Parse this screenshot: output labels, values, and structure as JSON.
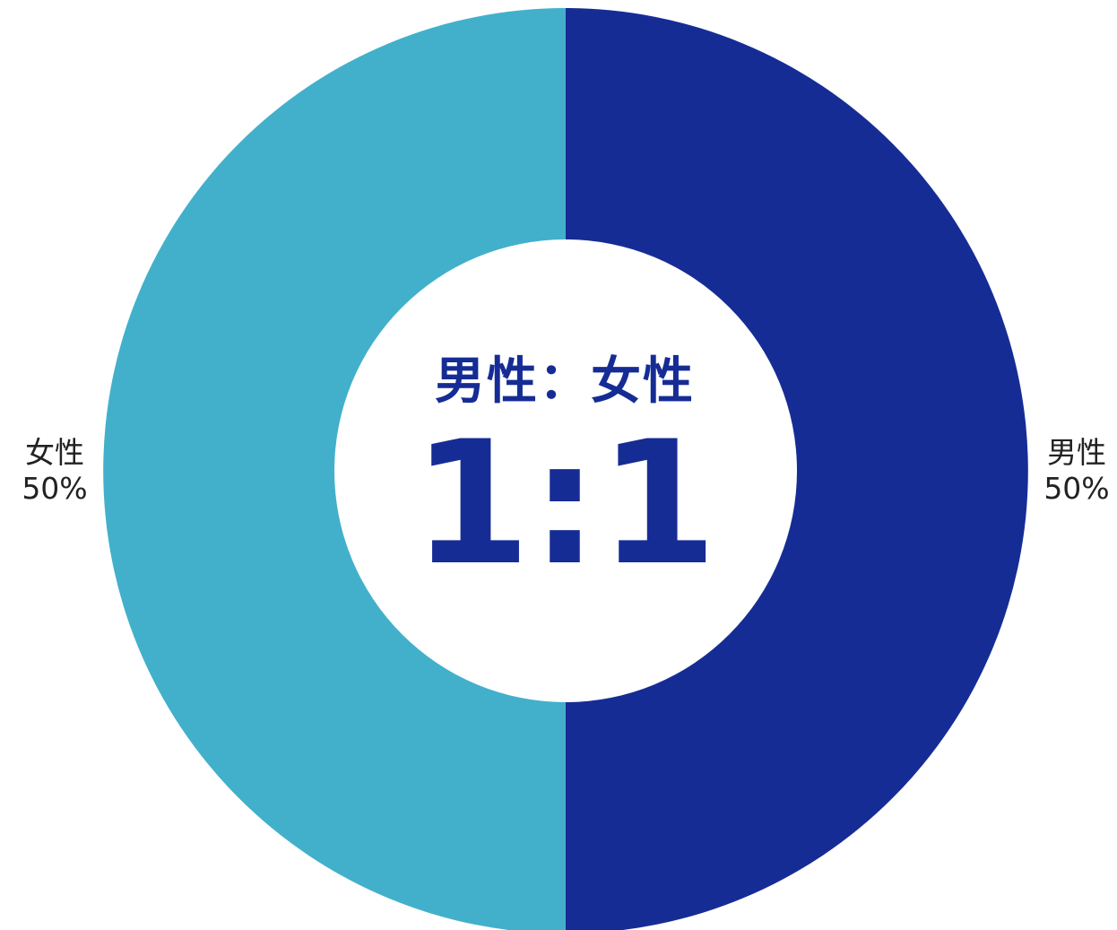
{
  "chart_data": {
    "type": "pie",
    "donut": true,
    "categories": [
      "男性",
      "女性"
    ],
    "values": [
      50,
      50
    ],
    "value_labels": [
      "50%",
      "50%"
    ],
    "colors": [
      "#162c95",
      "#42b0cb"
    ],
    "center_title": "男性：女性",
    "center_ratio": "1:1",
    "legend": "none"
  }
}
